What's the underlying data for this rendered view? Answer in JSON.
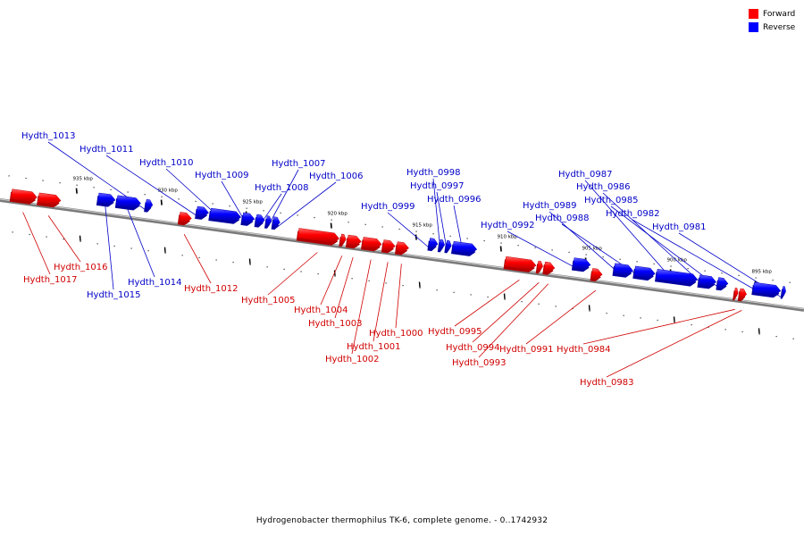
{
  "legend": {
    "forward": {
      "label": "Forward",
      "color": "#ff0000"
    },
    "reverse": {
      "label": "Reverse",
      "color": "#0000ff"
    }
  },
  "caption": "Hydrogenobacter thermophilus TK-6, complete genome. - 0..1742932",
  "scale": {
    "unit": "kbp",
    "range_kbp": [
      893,
      939
    ],
    "ticks": [
      {
        "label": "935 kbp",
        "kbp": 935
      },
      {
        "label": "930 kbp",
        "kbp": 930
      },
      {
        "label": "925 kbp",
        "kbp": 925
      },
      {
        "label": "920 kbp",
        "kbp": 920
      },
      {
        "label": "915 kbp",
        "kbp": 915
      },
      {
        "label": "910 kbp",
        "kbp": 910
      },
      {
        "label": "905 kbp",
        "kbp": 905
      },
      {
        "label": "900 kbp",
        "kbp": 900
      },
      {
        "label": "895 kbp",
        "kbp": 895
      }
    ]
  },
  "genes": [
    {
      "name": "Hydth_1017",
      "strand": "forward",
      "start": 938.9,
      "end": 937.4
    },
    {
      "name": "Hydth_1016",
      "strand": "forward",
      "start": 937.3,
      "end": 936.0
    },
    {
      "name": "Hydth_1015",
      "strand": "reverse",
      "start": 933.8,
      "end": 932.8
    },
    {
      "name": "Hydth_1014",
      "strand": "reverse",
      "start": 932.7,
      "end": 931.3
    },
    {
      "name": "Hydth_1013",
      "strand": "reverse",
      "start": 931.0,
      "end": 930.6
    },
    {
      "name": "Hydth_1012",
      "strand": "forward",
      "start": 929.0,
      "end": 928.3
    },
    {
      "name": "Hydth_1011",
      "strand": "reverse",
      "start": 928.0,
      "end": 927.3
    },
    {
      "name": "Hydth_1010",
      "strand": "reverse",
      "start": 927.2,
      "end": 925.4
    },
    {
      "name": "Hydth_1009",
      "strand": "reverse",
      "start": 925.3,
      "end": 924.6
    },
    {
      "name": "Hydth_1008",
      "strand": "reverse",
      "start": 924.5,
      "end": 924.0
    },
    {
      "name": "Hydth_1007",
      "strand": "reverse",
      "start": 923.9,
      "end": 923.6
    },
    {
      "name": "Hydth_1006",
      "strand": "reverse",
      "start": 923.5,
      "end": 923.1
    },
    {
      "name": "Hydth_1005",
      "strand": "forward",
      "start": 922.0,
      "end": 919.6
    },
    {
      "name": "Hydth_1004",
      "strand": "forward",
      "start": 919.5,
      "end": 919.2
    },
    {
      "name": "Hydth_1003",
      "strand": "forward",
      "start": 919.1,
      "end": 918.3
    },
    {
      "name": "Hydth_1002",
      "strand": "forward",
      "start": 918.2,
      "end": 917.1
    },
    {
      "name": "Hydth_1001",
      "strand": "forward",
      "start": 917.0,
      "end": 916.3
    },
    {
      "name": "Hydth_1000",
      "strand": "forward",
      "start": 916.2,
      "end": 915.5
    },
    {
      "name": "Hydth_0999",
      "strand": "reverse",
      "start": 914.3,
      "end": 913.8
    },
    {
      "name": "Hydth_0998",
      "strand": "reverse",
      "start": 913.7,
      "end": 913.4
    },
    {
      "name": "Hydth_0997",
      "strand": "reverse",
      "start": 913.3,
      "end": 913.0
    },
    {
      "name": "Hydth_0996",
      "strand": "reverse",
      "start": 912.9,
      "end": 911.5
    },
    {
      "name": "Hydth_0995",
      "strand": "forward",
      "start": 909.8,
      "end": 908.0
    },
    {
      "name": "Hydth_0994",
      "strand": "forward",
      "start": 907.9,
      "end": 907.6
    },
    {
      "name": "Hydth_0993",
      "strand": "forward",
      "start": 907.5,
      "end": 906.9
    },
    {
      "name": "Hydth_0992",
      "strand": "reverse",
      "start": 905.8,
      "end": 904.8
    },
    {
      "name": "Hydth_0991",
      "strand": "forward",
      "start": 904.7,
      "end": 904.1
    },
    {
      "name": "Hydth_0989",
      "strand": "reverse",
      "start": 903.4,
      "end": 902.3
    },
    {
      "name": "Hydth_0988",
      "strand": "reverse",
      "start": 902.2,
      "end": 901.0
    },
    {
      "name": "Hydth_0987",
      "strand": "reverse",
      "start": 900.9,
      "end": 898.5
    },
    {
      "name": "Hydth_0986",
      "strand": "reverse",
      "start": 898.4,
      "end": 897.4
    },
    {
      "name": "Hydth_0985",
      "strand": "reverse",
      "start": 897.3,
      "end": 896.7
    },
    {
      "name": "Hydth_0984",
      "strand": "forward",
      "start": 896.3,
      "end": 896.1
    },
    {
      "name": "Hydth_0983",
      "strand": "forward",
      "start": 896.0,
      "end": 895.6
    },
    {
      "name": "Hydth_0982",
      "strand": "reverse",
      "start": 895.2,
      "end": 893.6
    },
    {
      "name": "Hydth_0981",
      "strand": "reverse",
      "start": 893.5,
      "end": 893.3
    }
  ]
}
